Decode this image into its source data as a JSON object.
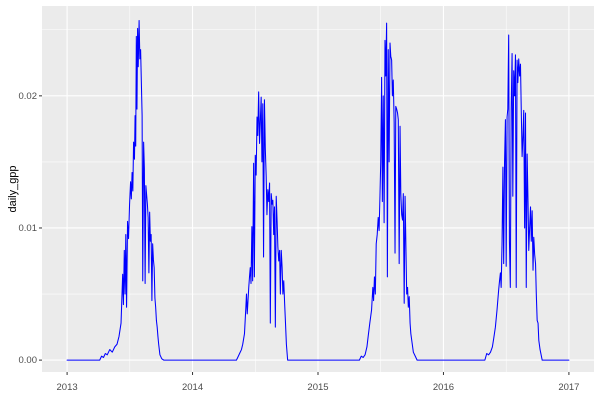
{
  "chart_data": {
    "type": "line",
    "title": "",
    "xlabel": "",
    "ylabel": "daily_gpp",
    "xlim": [
      2012.8,
      2017.2
    ],
    "ylim": [
      -0.0009,
      0.0268
    ],
    "grid": true,
    "legend": "none",
    "panel_bg": "#EBEBEB",
    "grid_color": "#FFFFFF",
    "tick_color": "#333333",
    "tick_label_color": "#4D4D4D",
    "axis_title_color": "#000000",
    "x_ticks": [
      {
        "v": 2013,
        "label": "2013"
      },
      {
        "v": 2014,
        "label": "2014"
      },
      {
        "v": 2015,
        "label": "2015"
      },
      {
        "v": 2016,
        "label": "2016"
      },
      {
        "v": 2017,
        "label": "2017"
      }
    ],
    "y_ticks": [
      {
        "v": 0.0,
        "label": "0.00"
      },
      {
        "v": 0.01,
        "label": "0.01"
      },
      {
        "v": 0.02,
        "label": "0.02"
      }
    ],
    "x_minor": [
      2013.5,
      2014.5,
      2015.5,
      2016.5
    ],
    "y_minor": [
      0.005,
      0.015,
      0.025
    ],
    "series": [
      {
        "name": "daily_gpp",
        "color": "#0000FF",
        "points": [
          [
            2013.0,
            0
          ],
          [
            2013.26,
            0
          ],
          [
            2013.275,
            0.0003
          ],
          [
            2013.29,
            0.0002
          ],
          [
            2013.305,
            0.0005
          ],
          [
            2013.32,
            0.0004
          ],
          [
            2013.34,
            0.0008
          ],
          [
            2013.36,
            0.0006
          ],
          [
            2013.38,
            0.001
          ],
          [
            2013.398,
            0.0012
          ],
          [
            2013.414,
            0.0018
          ],
          [
            2013.43,
            0.0028
          ],
          [
            2013.443,
            0.0065
          ],
          [
            2013.449,
            0.0042
          ],
          [
            2013.456,
            0.0083
          ],
          [
            2013.462,
            0.005
          ],
          [
            2013.468,
            0.0095
          ],
          [
            2013.474,
            0.004
          ],
          [
            2013.482,
            0.0105
          ],
          [
            2013.49,
            0.0092
          ],
          [
            2013.498,
            0.0118
          ],
          [
            2013.506,
            0.0135
          ],
          [
            2013.512,
            0.0122
          ],
          [
            2013.518,
            0.0142
          ],
          [
            2013.524,
            0.0128
          ],
          [
            2013.53,
            0.0165
          ],
          [
            2013.537,
            0.0152
          ],
          [
            2013.542,
            0.0185
          ],
          [
            2013.547,
            0.0162
          ],
          [
            2013.552,
            0.0245
          ],
          [
            2013.557,
            0.019
          ],
          [
            2013.562,
            0.0251
          ],
          [
            2013.567,
            0.0222
          ],
          [
            2013.574,
            0.0257
          ],
          [
            2013.58,
            0.0228
          ],
          [
            2013.586,
            0.0235
          ],
          [
            2013.592,
            0.021
          ],
          [
            2013.598,
            0.0185
          ],
          [
            2013.603,
            0.006
          ],
          [
            2013.61,
            0.0165
          ],
          [
            2013.616,
            0.0145
          ],
          [
            2013.622,
            0.0058
          ],
          [
            2013.628,
            0.0132
          ],
          [
            2013.634,
            0.0125
          ],
          [
            2013.64,
            0.0118
          ],
          [
            2013.646,
            0.0108
          ],
          [
            2013.652,
            0.0066
          ],
          [
            2013.658,
            0.0112
          ],
          [
            2013.664,
            0.009
          ],
          [
            2013.67,
            0.0095
          ],
          [
            2013.676,
            0.0045
          ],
          [
            2013.682,
            0.0088
          ],
          [
            2013.688,
            0.0076
          ],
          [
            2013.694,
            0.007
          ],
          [
            2013.7,
            0.0047
          ],
          [
            2013.706,
            0.004
          ],
          [
            2013.712,
            0.003
          ],
          [
            2013.718,
            0.0025
          ],
          [
            2013.724,
            0.0018
          ],
          [
            2013.73,
            0.0012
          ],
          [
            2013.74,
            0.0004
          ],
          [
            2013.755,
            0.0001
          ],
          [
            2013.77,
            0
          ],
          [
            2014.35,
            0
          ],
          [
            2014.36,
            0.0002
          ],
          [
            2014.375,
            0.0005
          ],
          [
            2014.39,
            0.0008
          ],
          [
            2014.4,
            0.0012
          ],
          [
            2014.414,
            0.002
          ],
          [
            2014.425,
            0.004
          ],
          [
            2014.43,
            0.005
          ],
          [
            2014.436,
            0.0035
          ],
          [
            2014.442,
            0.0045
          ],
          [
            2014.448,
            0.0055
          ],
          [
            2014.454,
            0.0063
          ],
          [
            2014.46,
            0.007
          ],
          [
            2014.466,
            0.0058
          ],
          [
            2014.473,
            0.0101
          ],
          [
            2014.479,
            0.006
          ],
          [
            2014.487,
            0.0149
          ],
          [
            2014.493,
            0.0063
          ],
          [
            2014.5,
            0.0155
          ],
          [
            2014.507,
            0.014
          ],
          [
            2014.514,
            0.0184
          ],
          [
            2014.52,
            0.017
          ],
          [
            2014.527,
            0.0203
          ],
          [
            2014.534,
            0.0164
          ],
          [
            2014.54,
            0.018
          ],
          [
            2014.547,
            0.0199
          ],
          [
            2014.553,
            0.015
          ],
          [
            2014.56,
            0.0194
          ],
          [
            2014.566,
            0.0078
          ],
          [
            2014.573,
            0.0197
          ],
          [
            2014.58,
            0.016
          ],
          [
            2014.587,
            0.0139
          ],
          [
            2014.593,
            0.011
          ],
          [
            2014.6,
            0.0129
          ],
          [
            2014.607,
            0.012
          ],
          [
            2014.614,
            0.0134
          ],
          [
            2014.62,
            0.0028
          ],
          [
            2014.627,
            0.0126
          ],
          [
            2014.634,
            0.0118
          ],
          [
            2014.64,
            0.0121
          ],
          [
            2014.647,
            0.0095
          ],
          [
            2014.653,
            0.0116
          ],
          [
            2014.66,
            0.0025
          ],
          [
            2014.667,
            0.0124
          ],
          [
            2014.674,
            0.0105
          ],
          [
            2014.68,
            0.0086
          ],
          [
            2014.687,
            0.0075
          ],
          [
            2014.694,
            0.0083
          ],
          [
            2014.7,
            0.005
          ],
          [
            2014.707,
            0.0083
          ],
          [
            2014.714,
            0.007
          ],
          [
            2014.72,
            0.005
          ],
          [
            2014.727,
            0.006
          ],
          [
            2014.734,
            0.0043
          ],
          [
            2014.74,
            0.003
          ],
          [
            2014.748,
            0.0012
          ],
          [
            2014.758,
            0
          ],
          [
            2015.33,
            0
          ],
          [
            2015.345,
            0.0003
          ],
          [
            2015.36,
            0.0002
          ],
          [
            2015.375,
            0.0004
          ],
          [
            2015.39,
            0.001
          ],
          [
            2015.4,
            0.0018
          ],
          [
            2015.413,
            0.0028
          ],
          [
            2015.427,
            0.0038
          ],
          [
            2015.437,
            0.0055
          ],
          [
            2015.443,
            0.0045
          ],
          [
            2015.45,
            0.0063
          ],
          [
            2015.457,
            0.005
          ],
          [
            2015.464,
            0.0088
          ],
          [
            2015.472,
            0.0095
          ],
          [
            2015.48,
            0.0108
          ],
          [
            2015.487,
            0.0098
          ],
          [
            2015.494,
            0.0124
          ],
          [
            2015.5,
            0.015
          ],
          [
            2015.507,
            0.0214
          ],
          [
            2015.513,
            0.012
          ],
          [
            2015.52,
            0.02
          ],
          [
            2015.527,
            0.0104
          ],
          [
            2015.534,
            0.0242
          ],
          [
            2015.54,
            0.0215
          ],
          [
            2015.547,
            0.0255
          ],
          [
            2015.553,
            0.0063
          ],
          [
            2015.56,
            0.0235
          ],
          [
            2015.567,
            0.015
          ],
          [
            2015.574,
            0.024
          ],
          [
            2015.58,
            0.023
          ],
          [
            2015.587,
            0.0227
          ],
          [
            2015.593,
            0.02
          ],
          [
            2015.6,
            0.0212
          ],
          [
            2015.607,
            0.018
          ],
          [
            2015.614,
            0.0081
          ],
          [
            2015.62,
            0.0192
          ],
          [
            2015.627,
            0.019
          ],
          [
            2015.634,
            0.0187
          ],
          [
            2015.64,
            0.0182
          ],
          [
            2015.647,
            0.0073
          ],
          [
            2015.654,
            0.0177
          ],
          [
            2015.66,
            0.0126
          ],
          [
            2015.667,
            0.011
          ],
          [
            2015.674,
            0.0106
          ],
          [
            2015.68,
            0.0126
          ],
          [
            2015.687,
            0.0043
          ],
          [
            2015.694,
            0.0124
          ],
          [
            2015.7,
            0.009
          ],
          [
            2015.707,
            0.005
          ],
          [
            2015.714,
            0.0055
          ],
          [
            2015.72,
            0.004
          ],
          [
            2015.727,
            0.0048
          ],
          [
            2015.734,
            0.0028
          ],
          [
            2015.74,
            0.002
          ],
          [
            2015.75,
            0.0013
          ],
          [
            2015.76,
            0.0006
          ],
          [
            2015.775,
            0.0003
          ],
          [
            2015.79,
            0
          ],
          [
            2016.33,
            0
          ],
          [
            2016.345,
            0.0005
          ],
          [
            2016.36,
            0.0004
          ],
          [
            2016.375,
            0.0006
          ],
          [
            2016.39,
            0.001
          ],
          [
            2016.4,
            0.0016
          ],
          [
            2016.414,
            0.0025
          ],
          [
            2016.427,
            0.0038
          ],
          [
            2016.44,
            0.0053
          ],
          [
            2016.447,
            0.006
          ],
          [
            2016.454,
            0.0066
          ],
          [
            2016.46,
            0.0055
          ],
          [
            2016.467,
            0.0088
          ],
          [
            2016.474,
            0.0146
          ],
          [
            2016.48,
            0.0073
          ],
          [
            2016.487,
            0.015
          ],
          [
            2016.494,
            0.0182
          ],
          [
            2016.5,
            0.0071
          ],
          [
            2016.507,
            0.0184
          ],
          [
            2016.513,
            0.019
          ],
          [
            2016.52,
            0.0246
          ],
          [
            2016.526,
            0.009
          ],
          [
            2016.533,
            0.0055
          ],
          [
            2016.54,
            0.019
          ],
          [
            2016.547,
            0.0232
          ],
          [
            2016.553,
            0.0124
          ],
          [
            2016.56,
            0.0219
          ],
          [
            2016.567,
            0.02
          ],
          [
            2016.574,
            0.0231
          ],
          [
            2016.58,
            0.0055
          ],
          [
            2016.587,
            0.0227
          ],
          [
            2016.593,
            0.021
          ],
          [
            2016.6,
            0.0228
          ],
          [
            2016.607,
            0.0215
          ],
          [
            2016.614,
            0.0224
          ],
          [
            2016.62,
            0.019
          ],
          [
            2016.627,
            0.0154
          ],
          [
            2016.634,
            0.017
          ],
          [
            2016.64,
            0.0189
          ],
          [
            2016.647,
            0.01
          ],
          [
            2016.654,
            0.0187
          ],
          [
            2016.66,
            0.0055
          ],
          [
            2016.667,
            0.0156
          ],
          [
            2016.674,
            0.012
          ],
          [
            2016.68,
            0.0083
          ],
          [
            2016.687,
            0.01
          ],
          [
            2016.694,
            0.0116
          ],
          [
            2016.7,
            0.009
          ],
          [
            2016.707,
            0.0113
          ],
          [
            2016.714,
            0.0068
          ],
          [
            2016.72,
            0.0093
          ],
          [
            2016.727,
            0.008
          ],
          [
            2016.734,
            0.0073
          ],
          [
            2016.74,
            0.005
          ],
          [
            2016.747,
            0.003
          ],
          [
            2016.754,
            0.0028
          ],
          [
            2016.76,
            0.0015
          ],
          [
            2016.77,
            0.0008
          ],
          [
            2016.787,
            0
          ],
          [
            2017.0,
            0
          ]
        ]
      }
    ]
  }
}
